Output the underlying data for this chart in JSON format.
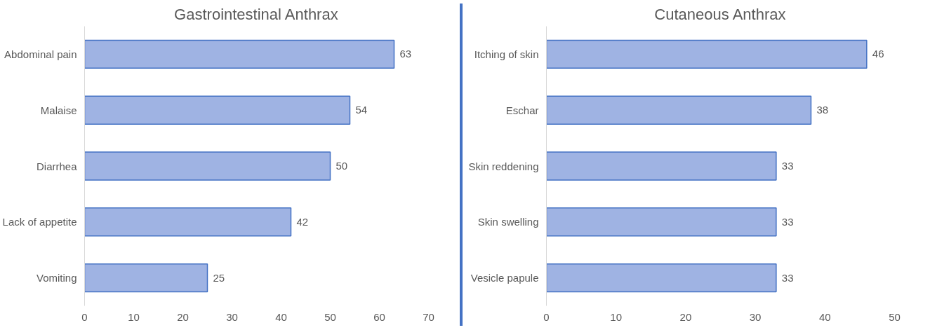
{
  "chart_data": [
    {
      "type": "bar",
      "orientation": "horizontal",
      "title": "Gastrointestinal Anthrax",
      "categories": [
        "Abdominal pain",
        "Malaise",
        "Diarrhea",
        "Lack of appetite",
        "Vomiting"
      ],
      "values": [
        63,
        54,
        50,
        42,
        25
      ],
      "color": "#9fb3e3",
      "xlim": [
        0,
        70
      ],
      "xticks": [
        0,
        10,
        20,
        30,
        40,
        50,
        60,
        70
      ],
      "grid": false,
      "data_labels": true
    },
    {
      "type": "bar",
      "orientation": "horizontal",
      "title": "Cutaneous Anthrax",
      "categories": [
        "Itching of skin",
        "Eschar",
        "Skin reddening",
        "Skin swelling",
        "Vesicle papule"
      ],
      "values": [
        46,
        38,
        33,
        33,
        33
      ],
      "color": "#9fb3e3",
      "xlim": [
        0,
        50
      ],
      "xticks": [
        0,
        10,
        20,
        30,
        40,
        50
      ],
      "grid": false,
      "data_labels": true
    }
  ]
}
